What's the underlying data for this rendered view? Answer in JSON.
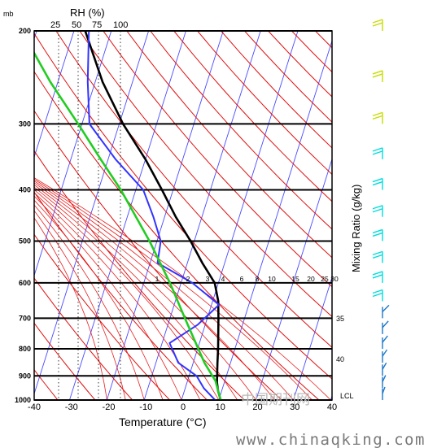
{
  "chart_data": {
    "type": "line",
    "subtype": "skew-t log-p thermodynamic diagram",
    "xlabel": "Temperature (°C)",
    "ylabel": "mb",
    "rh_label": "RH (%)",
    "rh_values": [
      "25",
      "50",
      "75",
      "100"
    ],
    "mixing_ratio_label": "Mixing Ratio (g/kg)",
    "mixing_ratio_values": [
      "1",
      "2",
      "3",
      "4",
      "6",
      "8",
      "10",
      "15",
      "20",
      "25",
      "30"
    ],
    "pressure_ticks": [
      200,
      300,
      400,
      500,
      600,
      700,
      800,
      900,
      1000
    ],
    "x_ticks": [
      -40,
      -30,
      -20,
      -10,
      0,
      10,
      20,
      30,
      40
    ],
    "xlim": [
      -40,
      40
    ],
    "ylim": [
      1000,
      200
    ],
    "isotherm_numbers_right": [
      "35",
      "40"
    ],
    "lcl_label": "LCL",
    "watermark": "中国期刊网",
    "footer_url": "www.chinaqking.com",
    "series": [
      {
        "key": "temperature",
        "color": "#000000",
        "points": [
          {
            "p": 1000,
            "t": 10.5
          },
          {
            "p": 960,
            "t": 9
          },
          {
            "p": 925,
            "t": 8
          },
          {
            "p": 850,
            "t": 6.5
          },
          {
            "p": 800,
            "t": 5.5
          },
          {
            "p": 700,
            "t": 3
          },
          {
            "p": 650,
            "t": 1.5
          },
          {
            "p": 600,
            "t": -1
          },
          {
            "p": 550,
            "t": -6
          },
          {
            "p": 500,
            "t": -11
          },
          {
            "p": 450,
            "t": -17
          },
          {
            "p": 400,
            "t": -23
          },
          {
            "p": 350,
            "t": -30
          },
          {
            "p": 300,
            "t": -39
          },
          {
            "p": 250,
            "t": -48
          },
          {
            "p": 200,
            "t": -57
          }
        ]
      },
      {
        "key": "dewpoint",
        "color": "#3333ff",
        "points": [
          {
            "p": 1000,
            "t": 9
          },
          {
            "p": 950,
            "t": 5
          },
          {
            "p": 900,
            "t": 2
          },
          {
            "p": 850,
            "t": -4
          },
          {
            "p": 780,
            "t": -8
          },
          {
            "p": 720,
            "t": -2
          },
          {
            "p": 660,
            "t": 2
          },
          {
            "p": 600,
            "t": -7
          },
          {
            "p": 550,
            "t": -18
          },
          {
            "p": 500,
            "t": -19
          },
          {
            "p": 450,
            "t": -23
          },
          {
            "p": 400,
            "t": -28
          },
          {
            "p": 350,
            "t": -38
          },
          {
            "p": 300,
            "t": -48
          },
          {
            "p": 250,
            "t": -52
          },
          {
            "p": 200,
            "t": -56
          }
        ]
      },
      {
        "key": "parcel",
        "color": "#22cc22",
        "points": [
          {
            "p": 1000,
            "t": 10.5
          },
          {
            "p": 920,
            "t": 7.5
          },
          {
            "p": 850,
            "t": 3
          },
          {
            "p": 700,
            "t": -6
          },
          {
            "p": 600,
            "t": -13
          },
          {
            "p": 500,
            "t": -22
          },
          {
            "p": 400,
            "t": -34
          },
          {
            "p": 350,
            "t": -42
          },
          {
            "p": 300,
            "t": -51
          },
          {
            "p": 250,
            "t": -62
          },
          {
            "p": 200,
            "t": -74
          }
        ]
      }
    ],
    "wind_barbs": {
      "upper_color": "#c8dc00",
      "mid_color": "#00dddd",
      "lower_color": "#1f78c8",
      "levels": [
        200,
        250,
        300,
        350,
        400,
        450,
        500,
        550,
        600,
        650,
        700,
        750,
        800,
        850,
        900,
        950,
        1000
      ]
    },
    "grid": true
  }
}
